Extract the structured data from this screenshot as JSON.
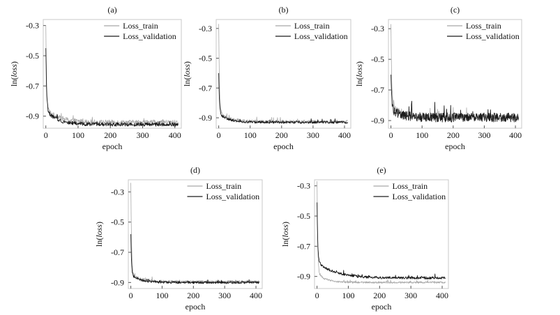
{
  "chart_data": [
    {
      "type": "line",
      "panel_label": "(a)",
      "xlabel": "epoch",
      "ylabel": "ln(loss)",
      "xlim": [
        -8,
        420
      ],
      "ylim": [
        -0.98,
        -0.26
      ],
      "xticks": [
        0,
        100,
        200,
        300,
        400
      ],
      "yticks": [
        -0.3,
        -0.5,
        -0.7,
        -0.9
      ],
      "grid": false,
      "legend": "top-right",
      "series": [
        {
          "name": "Loss_train",
          "color": "#a8a8a8",
          "start": -0.3,
          "level": -0.94,
          "knee": -0.85,
          "tau": 40,
          "noise": 0.015
        },
        {
          "name": "Loss_validation",
          "color": "#1a1a1a",
          "start": -0.45,
          "level": -0.955,
          "knee": -0.86,
          "tau": 35,
          "noise": 0.012
        }
      ]
    },
    {
      "type": "line",
      "panel_label": "(b)",
      "xlabel": "epoch",
      "ylabel": "ln(loss)",
      "xlim": [
        -8,
        420
      ],
      "ylim": [
        -0.97,
        -0.24
      ],
      "xticks": [
        0,
        100,
        200,
        300,
        400
      ],
      "yticks": [
        -0.3,
        -0.5,
        -0.7,
        -0.9
      ],
      "grid": false,
      "legend": "top-right",
      "series": [
        {
          "name": "Loss_train",
          "color": "#a8a8a8",
          "start": -0.27,
          "level": -0.925,
          "knee": -0.86,
          "tau": 30,
          "noise": 0.01
        },
        {
          "name": "Loss_validation",
          "color": "#1a1a1a",
          "start": -0.6,
          "level": -0.93,
          "knee": -0.87,
          "tau": 30,
          "noise": 0.008
        }
      ]
    },
    {
      "type": "line",
      "panel_label": "(c)",
      "xlabel": "epoch",
      "ylabel": "ln(loss)",
      "xlim": [
        -8,
        420
      ],
      "ylim": [
        -0.95,
        -0.24
      ],
      "xticks": [
        0,
        100,
        200,
        300,
        400
      ],
      "yticks": [
        -0.3,
        -0.5,
        -0.7,
        -0.9
      ],
      "grid": false,
      "legend": "top-right",
      "series": [
        {
          "name": "Loss_train",
          "color": "#a8a8a8",
          "start": -0.27,
          "level": -0.88,
          "knee": -0.8,
          "tau": 35,
          "noise": 0.02
        },
        {
          "name": "Loss_validation",
          "color": "#1a1a1a",
          "start": -0.6,
          "level": -0.88,
          "knee": -0.82,
          "tau": 30,
          "noise": 0.03
        }
      ]
    },
    {
      "type": "line",
      "panel_label": "(d)",
      "xlabel": "epoch",
      "ylabel": "ln(loss)",
      "xlim": [
        -8,
        420
      ],
      "ylim": [
        -0.94,
        -0.22
      ],
      "xticks": [
        0,
        100,
        200,
        300,
        400
      ],
      "yticks": [
        -0.3,
        -0.5,
        -0.7,
        -0.9
      ],
      "grid": false,
      "legend": "top-right",
      "series": [
        {
          "name": "Loss_train",
          "color": "#a8a8a8",
          "start": -0.24,
          "level": -0.895,
          "knee": -0.84,
          "tau": 30,
          "noise": 0.009
        },
        {
          "name": "Loss_validation",
          "color": "#1a1a1a",
          "start": -0.58,
          "level": -0.9,
          "knee": -0.85,
          "tau": 30,
          "noise": 0.008
        }
      ]
    },
    {
      "type": "line",
      "panel_label": "(e)",
      "xlabel": "epoch",
      "ylabel": "ln(loss)",
      "xlim": [
        -8,
        420
      ],
      "ylim": [
        -0.98,
        -0.26
      ],
      "xticks": [
        0,
        100,
        200,
        300,
        400
      ],
      "yticks": [
        -0.3,
        -0.5,
        -0.7,
        -0.9
      ],
      "grid": false,
      "legend": "top-right",
      "series": [
        {
          "name": "Loss_train",
          "color": "#a8a8a8",
          "start": -0.27,
          "level": -0.94,
          "knee": -0.88,
          "tau": 28,
          "noise": 0.006
        },
        {
          "name": "Loss_validation",
          "color": "#1a1a1a",
          "start": -0.41,
          "level": -0.91,
          "knee": -0.8,
          "tau": 55,
          "noise": 0.008
        }
      ]
    }
  ]
}
